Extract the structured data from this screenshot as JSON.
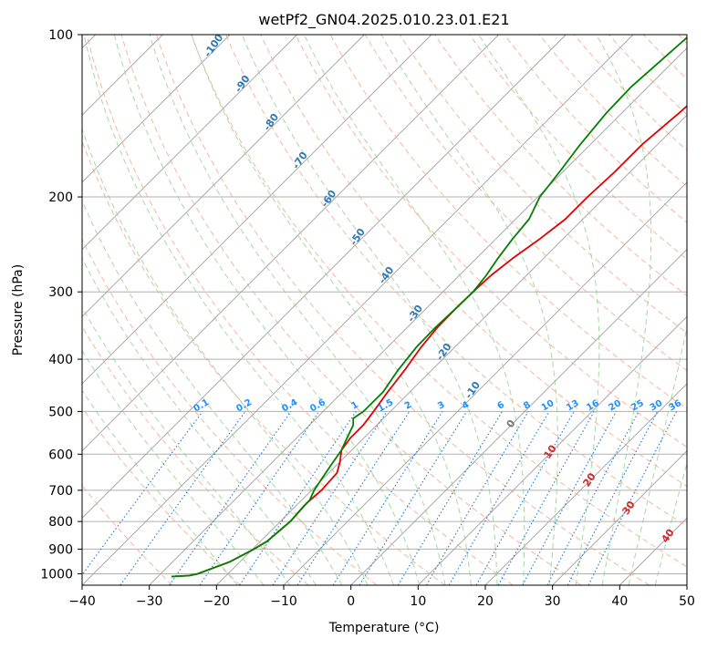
{
  "chart_data": {
    "type": "line",
    "subtype": "skew-T log-P diagram",
    "title": "wetPf2_GN04.2025.010.23.01.E21",
    "xlabel": "Temperature (°C)",
    "ylabel": "Pressure (hPa)",
    "xlim": [
      -40,
      50
    ],
    "ylim_pressure": [
      1050,
      100
    ],
    "y_scale": "log",
    "grid": true,
    "x_ticks": [
      "−40",
      "−30",
      "−20",
      "−10",
      "0",
      "10",
      "20",
      "30",
      "40",
      "50"
    ],
    "y_ticks": [
      "100",
      "200",
      "300",
      "400",
      "500",
      "600",
      "700",
      "800",
      "900",
      "1000"
    ],
    "series": [
      {
        "role": "temperature",
        "color": "#e00000",
        "points": [
          [
            1012,
            -28.0
          ],
          [
            1008,
            -25.5
          ],
          [
            1000,
            -24.5
          ],
          [
            950,
            -21.5
          ],
          [
            900,
            -19.8
          ],
          [
            870,
            -19.0
          ],
          [
            800,
            -18.5
          ],
          [
            740,
            -18.8
          ],
          [
            700,
            -18.5
          ],
          [
            650,
            -18.8
          ],
          [
            620,
            -20.0
          ],
          [
            590,
            -21.5
          ],
          [
            560,
            -22.0
          ],
          [
            530,
            -22.0
          ],
          [
            500,
            -22.5
          ],
          [
            460,
            -23.3
          ],
          [
            420,
            -24.0
          ],
          [
            380,
            -25.0
          ],
          [
            350,
            -25.5
          ],
          [
            320,
            -25.6
          ],
          [
            300,
            -25.5
          ],
          [
            280,
            -25.3
          ],
          [
            260,
            -24.6
          ],
          [
            240,
            -23.5
          ],
          [
            220,
            -22.6
          ],
          [
            200,
            -22.6
          ],
          [
            180,
            -22.3
          ],
          [
            160,
            -22.3
          ],
          [
            140,
            -21.5
          ],
          [
            125,
            -21.0
          ],
          [
            112,
            -20.7
          ],
          [
            100,
            -20.0
          ]
        ]
      },
      {
        "role": "dewpoint",
        "color": "#008000",
        "points": [
          [
            1012,
            -28.0
          ],
          [
            1008,
            -25.5
          ],
          [
            1000,
            -24.5
          ],
          [
            950,
            -21.5
          ],
          [
            900,
            -19.8
          ],
          [
            870,
            -19.0
          ],
          [
            800,
            -18.5
          ],
          [
            750,
            -18.8
          ],
          [
            730,
            -18.8
          ],
          [
            700,
            -19.6
          ],
          [
            660,
            -20.3
          ],
          [
            620,
            -21.0
          ],
          [
            590,
            -21.5
          ],
          [
            560,
            -22.5
          ],
          [
            530,
            -23.5
          ],
          [
            515,
            -24.5
          ],
          [
            500,
            -24.0
          ],
          [
            460,
            -24.0
          ],
          [
            420,
            -25.0
          ],
          [
            380,
            -25.7
          ],
          [
            350,
            -25.8
          ],
          [
            320,
            -25.6
          ],
          [
            300,
            -25.5
          ],
          [
            280,
            -26.0
          ],
          [
            260,
            -26.8
          ],
          [
            240,
            -27.5
          ],
          [
            220,
            -28.0
          ],
          [
            200,
            -29.7
          ],
          [
            180,
            -30.5
          ],
          [
            160,
            -31.5
          ],
          [
            140,
            -32.3
          ],
          [
            125,
            -32.5
          ],
          [
            112,
            -32.0
          ],
          [
            100,
            -31.5
          ]
        ]
      }
    ],
    "dry_adiabat_labels": [
      "-100",
      "-90",
      "-80",
      "-70",
      "-60",
      "-50",
      "-40",
      "-30",
      "-20",
      "-10"
    ],
    "moist_adiabat_labels": [
      "0",
      "10",
      "20",
      "30",
      "40"
    ],
    "mixing_ratio_labels": [
      "0.1",
      "0.2",
      "0.4",
      "0.6",
      "1",
      "1.5",
      "2",
      "3",
      "4",
      "6",
      "8",
      "10",
      "13",
      "16",
      "20",
      "25",
      "30",
      "36"
    ],
    "colors": {
      "isobar": "#b0b0b0",
      "isotherm": "#a0a0a0",
      "dry_adiabat": "#f4a582",
      "moist_adiabat": "#8fcf8f",
      "mixing_ratio": "#1f78d4",
      "label_blue": "#2f79b4",
      "label_red": "#d62728",
      "label_mix": "#1e90ff"
    }
  }
}
